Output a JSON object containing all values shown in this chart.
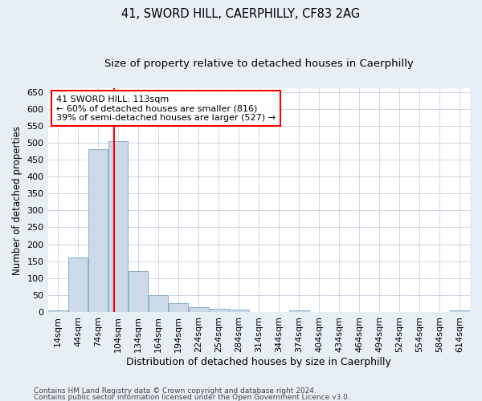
{
  "title": "41, SWORD HILL, CAERPHILLY, CF83 2AG",
  "subtitle": "Size of property relative to detached houses in Caerphilly",
  "xlabel": "Distribution of detached houses by size in Caerphilly",
  "ylabel": "Number of detached properties",
  "bar_color": "#ccd9e8",
  "bar_edgecolor": "#8ab0cc",
  "vline_x": 113,
  "vline_color": "red",
  "annotation_text": "41 SWORD HILL: 113sqm\n← 60% of detached houses are smaller (816)\n39% of semi-detached houses are larger (527) →",
  "annotation_box_color": "white",
  "annotation_box_edgecolor": "red",
  "footer1": "Contains HM Land Registry data © Crown copyright and database right 2024.",
  "footer2": "Contains public sector information licensed under the Open Government Licence v3.0.",
  "categories": [
    "14sqm",
    "44sqm",
    "74sqm",
    "104sqm",
    "134sqm",
    "164sqm",
    "194sqm",
    "224sqm",
    "254sqm",
    "284sqm",
    "314sqm",
    "344sqm",
    "374sqm",
    "404sqm",
    "434sqm",
    "464sqm",
    "494sqm",
    "524sqm",
    "554sqm",
    "584sqm",
    "614sqm"
  ],
  "bin_starts": [
    14,
    44,
    74,
    104,
    134,
    164,
    194,
    224,
    254,
    284,
    314,
    344,
    374,
    404,
    434,
    464,
    494,
    524,
    554,
    584,
    614
  ],
  "bin_width": 30,
  "values": [
    5,
    160,
    480,
    505,
    120,
    50,
    25,
    15,
    10,
    8,
    0,
    0,
    5,
    0,
    0,
    0,
    0,
    0,
    0,
    0,
    5
  ],
  "ylim": [
    0,
    660
  ],
  "yticks": [
    0,
    50,
    100,
    150,
    200,
    250,
    300,
    350,
    400,
    450,
    500,
    550,
    600,
    650
  ],
  "background_color": "#e8eef8",
  "plot_background": "white",
  "grid_color": "#c8d0e0",
  "title_fontsize": 10.5,
  "subtitle_fontsize": 9.5,
  "xlabel_fontsize": 9,
  "ylabel_fontsize": 8.5,
  "tick_fontsize": 8,
  "annot_fontsize": 8
}
